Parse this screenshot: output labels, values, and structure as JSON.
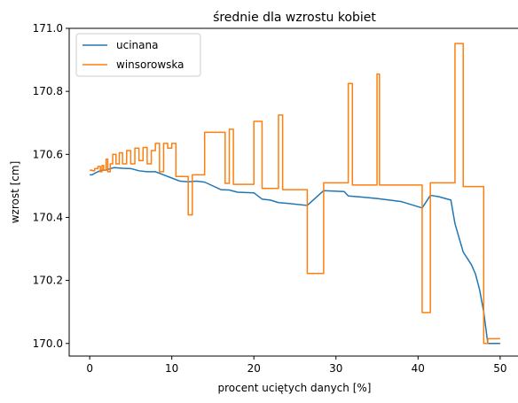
{
  "chart_data": {
    "type": "line",
    "title": "średnie dla wzrostu kobiet",
    "xlabel": "procent uciętych danych [%]",
    "ylabel": "wzrost [cm]",
    "xlim": [
      -2.5,
      52.5
    ],
    "ylim": [
      169.96,
      171.0
    ],
    "xticks": [
      0,
      10,
      20,
      30,
      40,
      50
    ],
    "yticks": [
      170.0,
      170.2,
      170.4,
      170.6,
      170.8,
      171.0
    ],
    "xtick_labels": [
      "0",
      "10",
      "20",
      "30",
      "40",
      "50"
    ],
    "ytick_labels": [
      "170.0",
      "170.2",
      "170.4",
      "170.6",
      "170.8",
      "171.0"
    ],
    "grid": false,
    "legend_position": "top-left",
    "series": [
      {
        "name": "ucinana",
        "color": "#1f77b4",
        "step": false,
        "x": [
          0,
          0.3,
          0.6,
          1.0,
          1.5,
          2.0,
          2.5,
          3.0,
          4.0,
          5.0,
          6.0,
          7.0,
          8.0,
          9.0,
          10.0,
          11.0,
          12.0,
          13.0,
          14.0,
          15.0,
          16.0,
          17.0,
          18.0,
          20.0,
          21.0,
          22.0,
          23.0,
          24.0,
          26.5,
          28.5,
          31.0,
          31.5,
          33.0,
          35.0,
          36.5,
          38.0,
          40.5,
          41.5,
          42.5,
          44.0,
          44.5,
          45.5,
          46.0,
          46.5,
          47.0,
          47.5,
          48.0,
          48.5,
          50.0
        ],
        "y": [
          170.535,
          170.535,
          170.54,
          170.545,
          170.55,
          170.55,
          170.555,
          170.558,
          170.556,
          170.555,
          170.548,
          170.545,
          170.545,
          170.535,
          170.525,
          170.515,
          170.513,
          170.515,
          170.512,
          170.5,
          170.488,
          170.487,
          170.48,
          170.478,
          170.458,
          170.455,
          170.447,
          170.445,
          170.438,
          170.485,
          170.482,
          170.468,
          170.465,
          170.46,
          170.455,
          170.45,
          170.43,
          170.47,
          170.466,
          170.455,
          170.38,
          170.29,
          170.27,
          170.25,
          170.22,
          170.17,
          170.1,
          170.0,
          170.0
        ]
      },
      {
        "name": "winsorowska",
        "color": "#ff7f0e",
        "step": true,
        "x": [
          0,
          0.3,
          0.6,
          1.0,
          1.3,
          1.5,
          1.7,
          2.0,
          2.2,
          2.5,
          2.8,
          3.2,
          3.6,
          4.0,
          4.5,
          5.0,
          5.5,
          6.0,
          6.5,
          7.0,
          7.5,
          8.0,
          8.5,
          9.0,
          9.5,
          10.0,
          10.5,
          12.0,
          12.5,
          13.0,
          14.0,
          16.5,
          17.0,
          17.5,
          20.0,
          21.0,
          22.0,
          23.0,
          23.5,
          26.5,
          28.5,
          31.5,
          32.0,
          35.0,
          35.3,
          40.5,
          41.5,
          44.5,
          45.5,
          48.0,
          48.5,
          50.0
        ],
        "y": [
          170.55,
          170.548,
          170.555,
          170.562,
          170.545,
          170.565,
          170.55,
          170.585,
          170.545,
          170.57,
          170.6,
          170.57,
          170.605,
          170.57,
          170.612,
          170.57,
          170.62,
          170.58,
          170.622,
          170.57,
          170.612,
          170.635,
          170.545,
          170.635,
          170.62,
          170.635,
          170.53,
          170.408,
          170.535,
          170.535,
          170.67,
          170.508,
          170.68,
          170.505,
          170.705,
          170.492,
          170.492,
          170.725,
          170.488,
          170.222,
          170.51,
          170.825,
          170.503,
          170.855,
          170.503,
          170.098,
          170.51,
          170.952,
          170.498,
          170.0,
          170.015,
          170.015
        ]
      }
    ]
  }
}
